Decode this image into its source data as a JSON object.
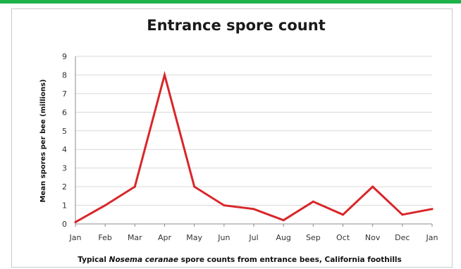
{
  "chart_data": {
    "type": "line",
    "title": "Entrance spore count",
    "ylabel": "Mean spores per bee (millions)",
    "caption": {
      "prefix": "Typical ",
      "italic": "Nosema ceranae",
      "suffix": " spore counts from entrance bees, California foothills"
    },
    "categories": [
      "Jan",
      "Feb",
      "Mar",
      "Apr",
      "May",
      "Jun",
      "Jul",
      "Aug",
      "Sep",
      "Oct",
      "Nov",
      "Dec",
      "Jan"
    ],
    "series": [
      {
        "values": [
          0.1,
          1.0,
          2.0,
          8.0,
          2.0,
          1.0,
          0.8,
          0.2,
          1.2,
          0.5,
          2.0,
          0.5,
          0.8
        ]
      }
    ],
    "ylim": [
      0,
      9
    ],
    "yticks": [
      "0",
      "1",
      "2",
      "3",
      "4",
      "5",
      "6",
      "7",
      "8",
      "9"
    ],
    "grid": true,
    "line_color": "#d9262a",
    "grid_color": "#d9d9d9"
  }
}
